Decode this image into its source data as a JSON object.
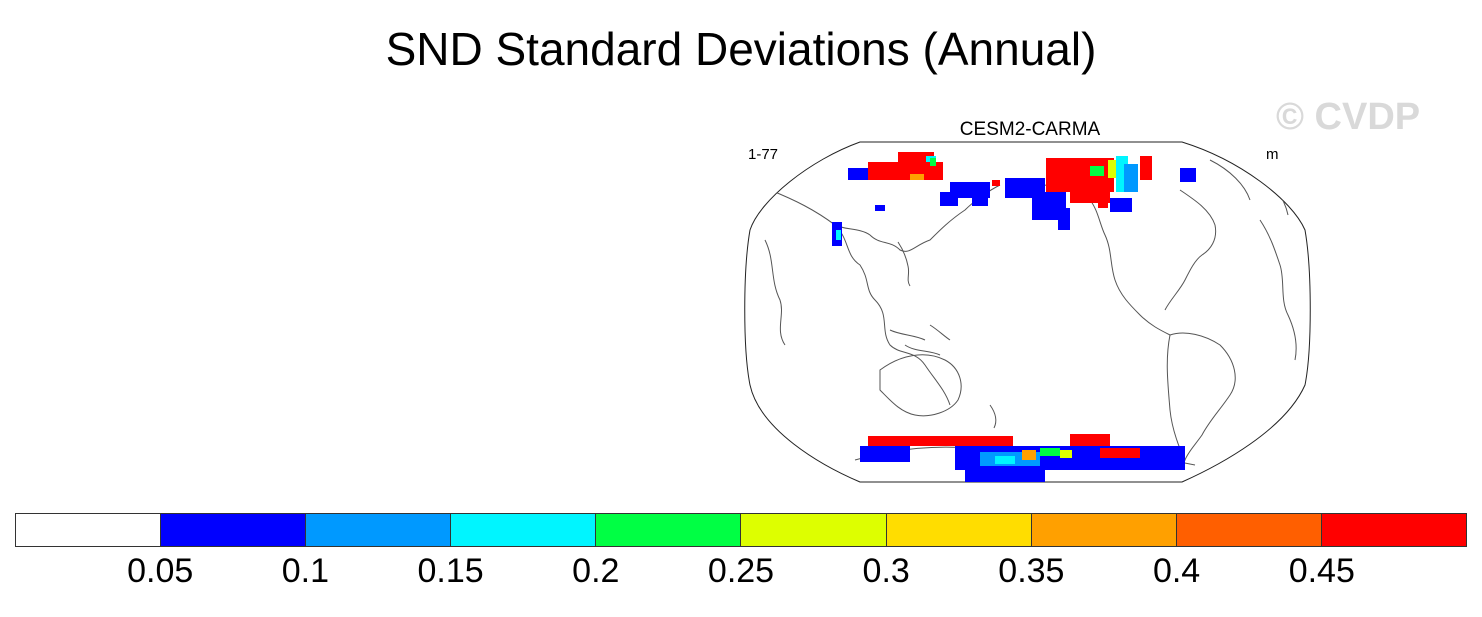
{
  "title": "SND Standard Deviations (Annual)",
  "watermark": "© CVDP",
  "panel": {
    "title": "CESM2-CARMA",
    "left_label": "1-77",
    "right_label": "m"
  },
  "map": {
    "projection": "robinson",
    "central_longitude": "Pacific-centered",
    "highlighted_regions": [
      {
        "name": "northern-eurasia",
        "dominant_level": "high"
      },
      {
        "name": "siberia-coast",
        "dominant_level": "low"
      },
      {
        "name": "alaska-yukon",
        "dominant_level": "low"
      },
      {
        "name": "canadian-arctic-greenland",
        "dominant_level": "high"
      },
      {
        "name": "antarctica",
        "dominant_level": "mixed"
      }
    ]
  },
  "colorbar": {
    "colors": [
      "#ffffff",
      "#0000ff",
      "#0099ff",
      "#00f5ff",
      "#00ff44",
      "#ddff00",
      "#ffdd00",
      "#ffa000",
      "#ff5f00",
      "#ff0000"
    ],
    "tick_labels": [
      "0.05",
      "0.1",
      "0.15",
      "0.2",
      "0.25",
      "0.3",
      "0.35",
      "0.4",
      "0.45"
    ]
  }
}
